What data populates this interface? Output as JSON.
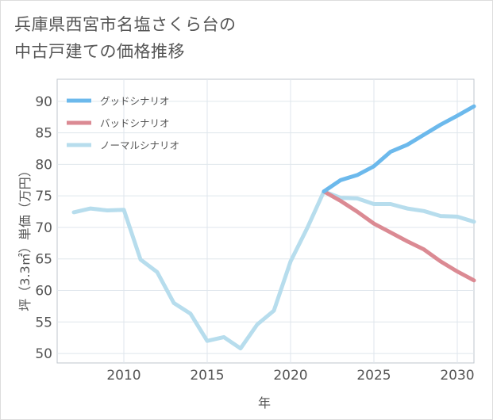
{
  "title_lines": [
    "兵庫県西宮市名塩さくら台の",
    "中古戸建ての価格推移"
  ],
  "chart_data": {
    "type": "line",
    "xlabel": "年",
    "ylabel": "坪（3.3㎡）単価（万円）",
    "xlim": [
      2006,
      2031
    ],
    "ylim": [
      48.5,
      93.5
    ],
    "xticks": [
      2010,
      2015,
      2020,
      2025,
      2030
    ],
    "yticks": [
      50,
      55,
      60,
      65,
      70,
      75,
      80,
      85,
      90
    ],
    "grid": true,
    "legend_position": "top-left",
    "series": [
      {
        "name": "グッドシナリオ",
        "color": "#6cb9ec",
        "x": [
          2022,
          2023,
          2024,
          2025,
          2026,
          2027,
          2028,
          2029,
          2030,
          2031
        ],
        "y": [
          75.7,
          77.5,
          78.3,
          79.7,
          82.0,
          83.1,
          84.7,
          86.3,
          87.7,
          89.2
        ]
      },
      {
        "name": "バッドシナリオ",
        "color": "#db8a93",
        "x": [
          2022,
          2023,
          2024,
          2025,
          2026,
          2027,
          2028,
          2029,
          2030,
          2031
        ],
        "y": [
          75.7,
          74.2,
          72.5,
          70.6,
          69.2,
          67.8,
          66.5,
          64.6,
          63.0,
          61.6
        ]
      },
      {
        "name": "ノーマルシナリオ",
        "color": "#b7dded",
        "x": [
          2007,
          2008,
          2009,
          2010,
          2011,
          2012,
          2013,
          2014,
          2015,
          2016,
          2017,
          2018,
          2019,
          2020,
          2021,
          2022,
          2023,
          2024,
          2025,
          2026,
          2027,
          2028,
          2029,
          2030,
          2031
        ],
        "y": [
          72.4,
          73.0,
          72.7,
          72.8,
          64.9,
          62.9,
          58.0,
          56.3,
          52.0,
          52.6,
          50.8,
          54.6,
          56.8,
          64.6,
          69.9,
          75.7,
          74.7,
          74.6,
          73.7,
          73.7,
          73.0,
          72.6,
          71.8,
          71.7,
          70.9
        ]
      }
    ]
  }
}
